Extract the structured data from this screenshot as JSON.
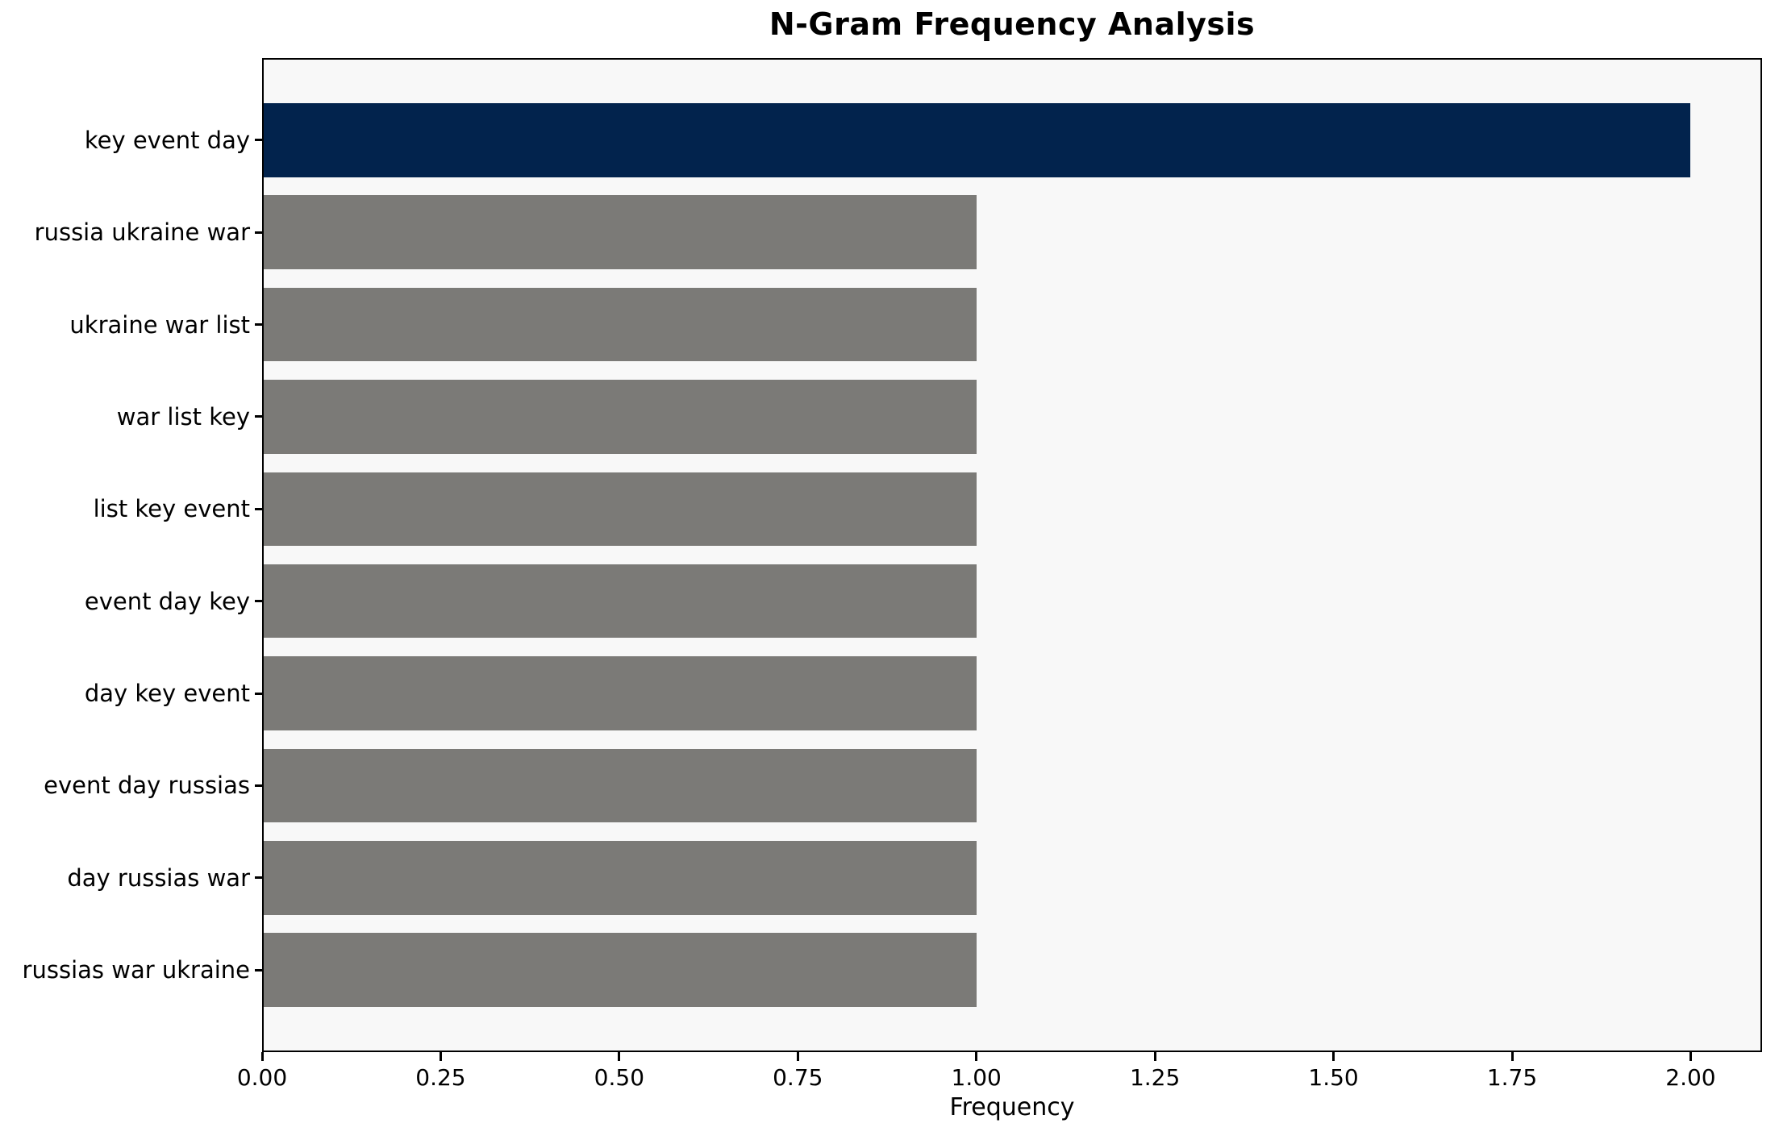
{
  "chart_data": {
    "type": "bar",
    "orientation": "horizontal",
    "title": "N-Gram Frequency Analysis",
    "xlabel": "Frequency",
    "ylabel": "",
    "categories": [
      "key event day",
      "russia ukraine war",
      "ukraine war list",
      "war list key",
      "list key event",
      "event day key",
      "day key event",
      "event day russias",
      "day russias war",
      "russias war ukraine"
    ],
    "values": [
      2,
      1,
      1,
      1,
      1,
      1,
      1,
      1,
      1,
      1
    ],
    "xlim": [
      0,
      2.1
    ],
    "xticks": [
      0,
      0.25,
      0.5,
      0.75,
      1.0,
      1.25,
      1.5,
      1.75,
      2.0
    ],
    "xtick_labels": [
      "0.00",
      "0.25",
      "0.50",
      "0.75",
      "1.00",
      "1.25",
      "1.50",
      "1.75",
      "2.00"
    ],
    "grid": false,
    "legend": "none",
    "bar_colors": [
      "#02234d",
      "#7b7a77",
      "#7b7a77",
      "#7b7a77",
      "#7b7a77",
      "#7b7a77",
      "#7b7a77",
      "#7b7a77",
      "#7b7a77",
      "#7b7a77"
    ],
    "colors": {
      "highlight_bar": "#02234d",
      "default_bar": "#7b7a77",
      "plot_background": "#f8f8f8",
      "figure_background": "#ffffff",
      "axis_line": "#000000",
      "text": "#000000"
    }
  }
}
